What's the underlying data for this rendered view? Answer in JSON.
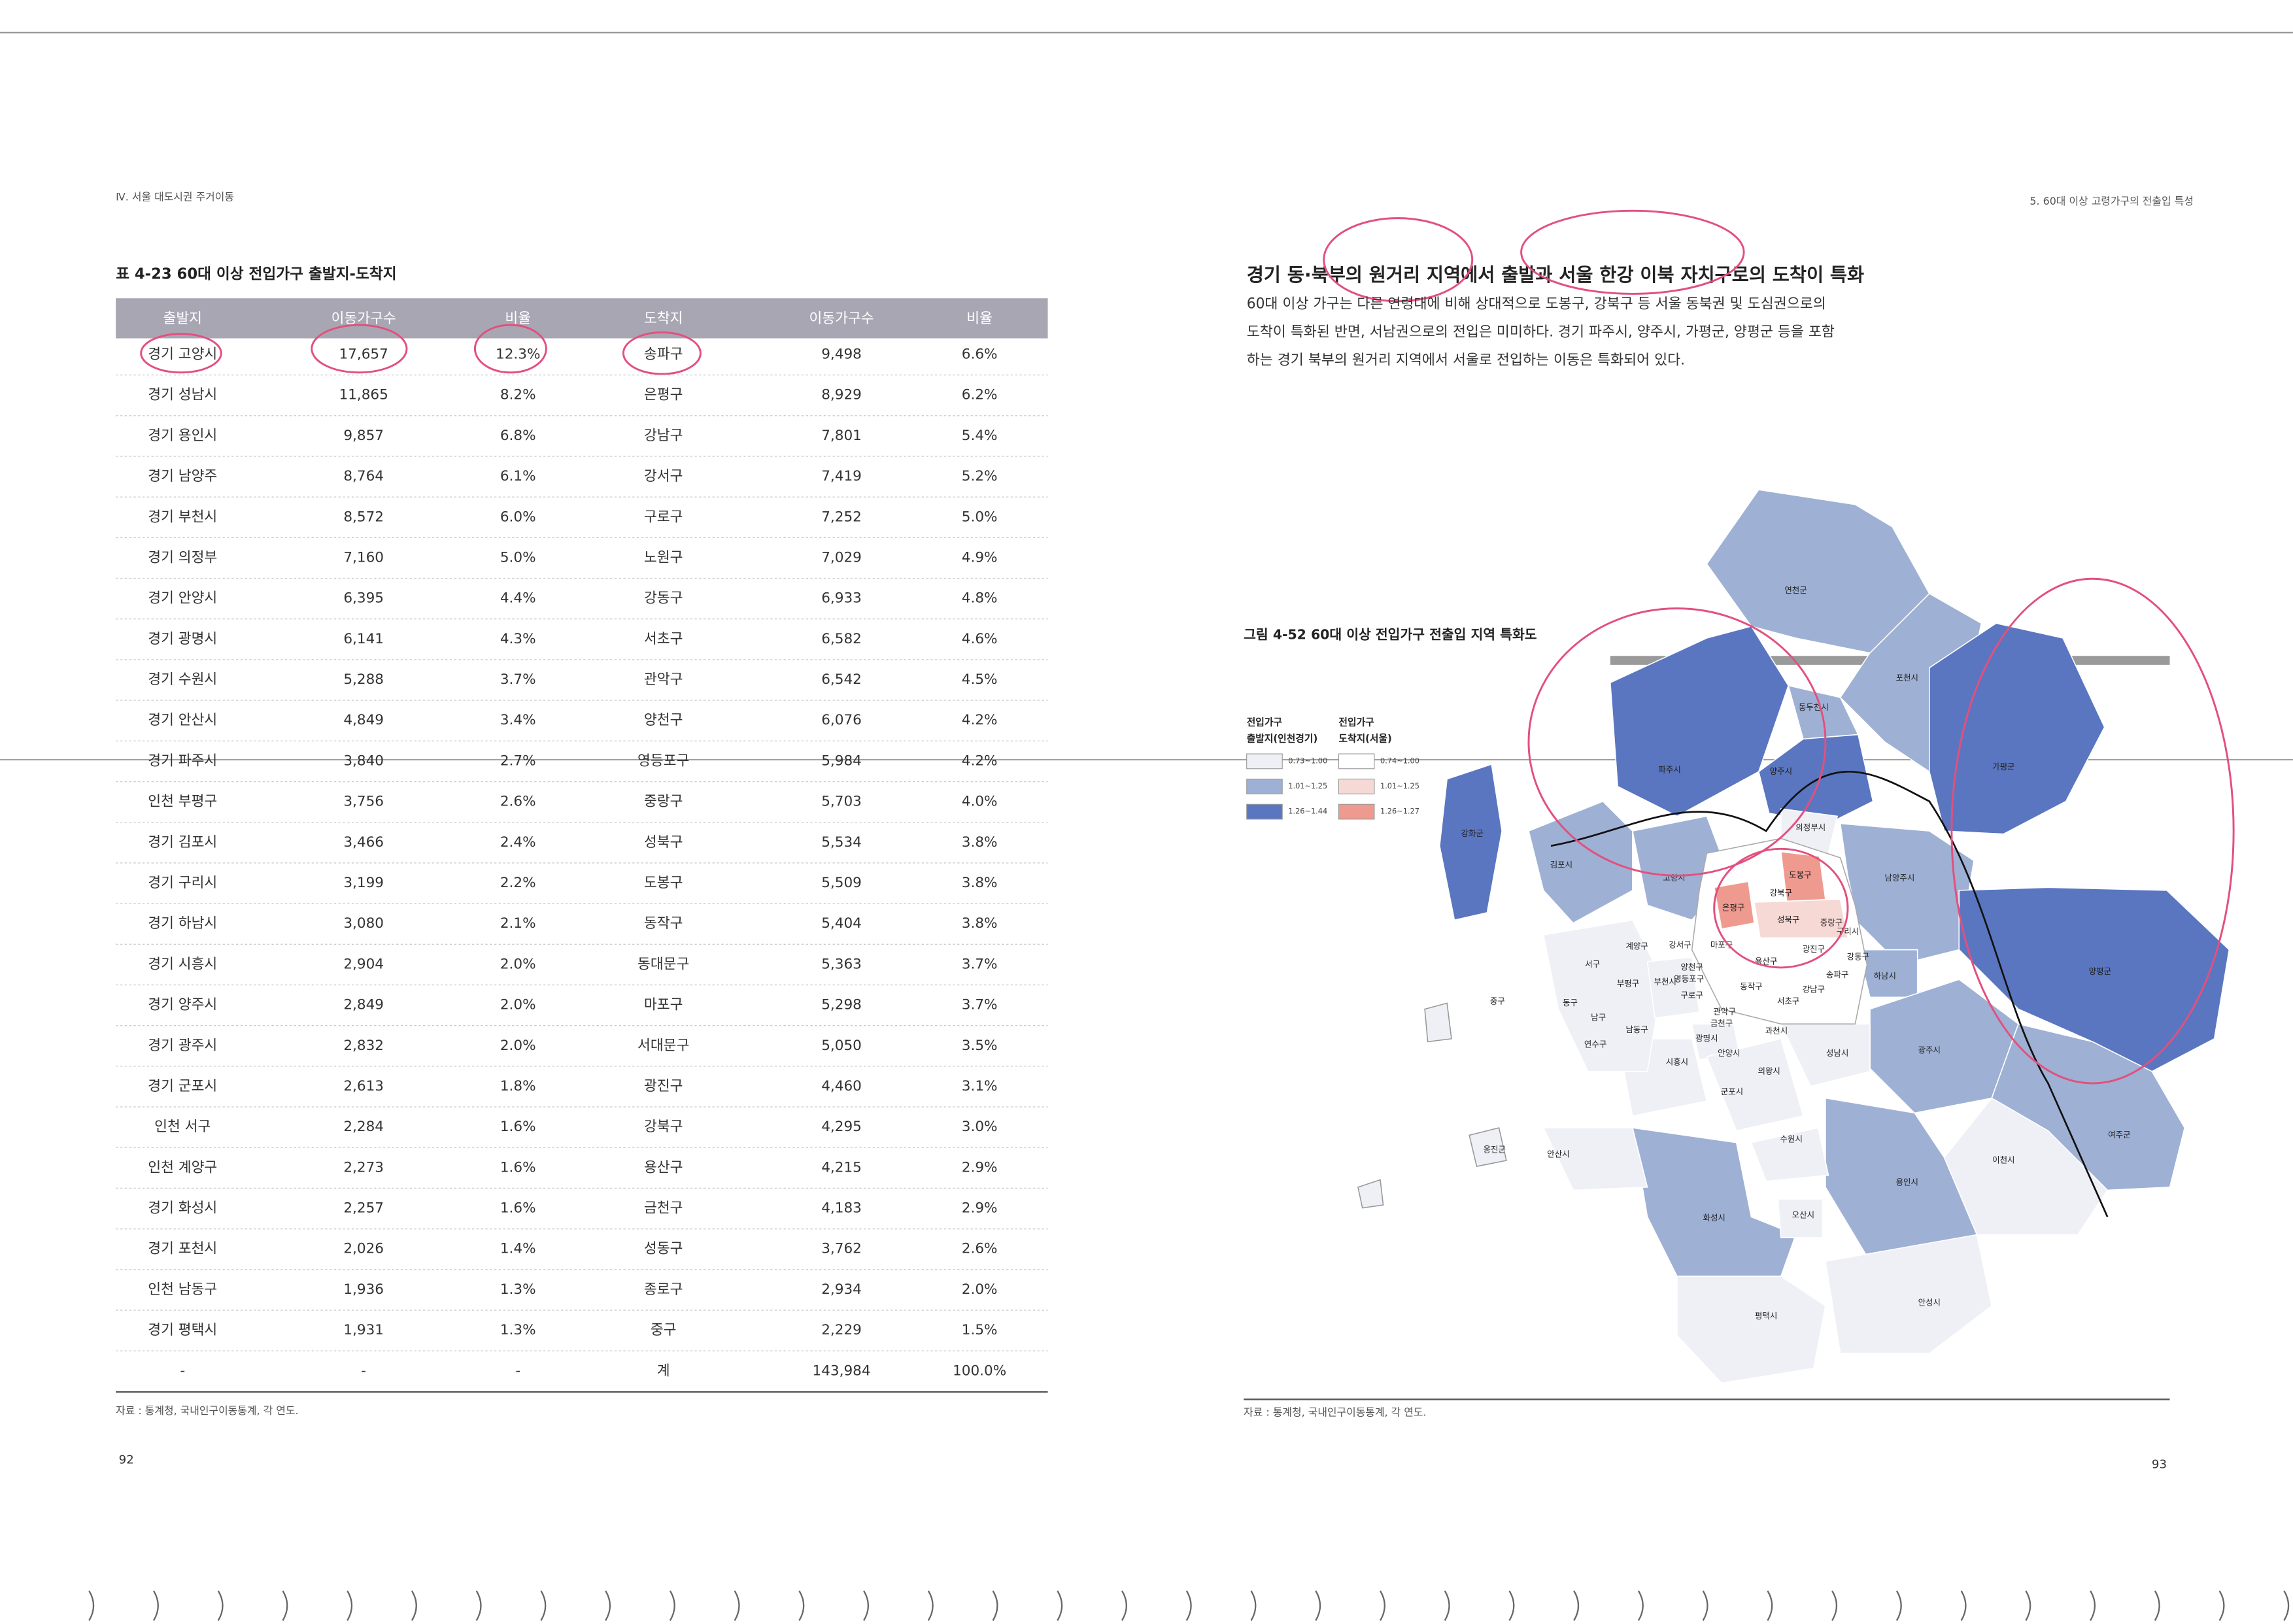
{
  "header": {
    "left": "Ⅳ. 서울 대도시권 주거이동",
    "right": "5. 60대 이상 고령가구의 전출입 특성"
  },
  "table": {
    "title": "표 4-23 60대 이상 전입가구 출발지-도착지",
    "columns": [
      "출발지",
      "이동가구수",
      "비율",
      "도착지",
      "이동가구수",
      "비율"
    ],
    "rows": [
      [
        "경기 고양시",
        "17,657",
        "12.3%",
        "송파구",
        "9,498",
        "6.6%"
      ],
      [
        "경기 성남시",
        "11,865",
        "8.2%",
        "은평구",
        "8,929",
        "6.2%"
      ],
      [
        "경기 용인시",
        "9,857",
        "6.8%",
        "강남구",
        "7,801",
        "5.4%"
      ],
      [
        "경기 남양주",
        "8,764",
        "6.1%",
        "강서구",
        "7,419",
        "5.2%"
      ],
      [
        "경기 부천시",
        "8,572",
        "6.0%",
        "구로구",
        "7,252",
        "5.0%"
      ],
      [
        "경기 의정부",
        "7,160",
        "5.0%",
        "노원구",
        "7,029",
        "4.9%"
      ],
      [
        "경기 안양시",
        "6,395",
        "4.4%",
        "강동구",
        "6,933",
        "4.8%"
      ],
      [
        "경기 광명시",
        "6,141",
        "4.3%",
        "서초구",
        "6,582",
        "4.6%"
      ],
      [
        "경기 수원시",
        "5,288",
        "3.7%",
        "관악구",
        "6,542",
        "4.5%"
      ],
      [
        "경기 안산시",
        "4,849",
        "3.4%",
        "양천구",
        "6,076",
        "4.2%"
      ],
      [
        "경기 파주시",
        "3,840",
        "2.7%",
        "영등포구",
        "5,984",
        "4.2%"
      ],
      [
        "인천 부평구",
        "3,756",
        "2.6%",
        "중랑구",
        "5,703",
        "4.0%"
      ],
      [
        "경기 김포시",
        "3,466",
        "2.4%",
        "성북구",
        "5,534",
        "3.8%"
      ],
      [
        "경기 구리시",
        "3,199",
        "2.2%",
        "도봉구",
        "5,509",
        "3.8%"
      ],
      [
        "경기 하남시",
        "3,080",
        "2.1%",
        "동작구",
        "5,404",
        "3.8%"
      ],
      [
        "경기 시흥시",
        "2,904",
        "2.0%",
        "동대문구",
        "5,363",
        "3.7%"
      ],
      [
        "경기 양주시",
        "2,849",
        "2.0%",
        "마포구",
        "5,298",
        "3.7%"
      ],
      [
        "경기 광주시",
        "2,832",
        "2.0%",
        "서대문구",
        "5,050",
        "3.5%"
      ],
      [
        "경기 군포시",
        "2,613",
        "1.8%",
        "광진구",
        "4,460",
        "3.1%"
      ],
      [
        "인천 서구",
        "2,284",
        "1.6%",
        "강북구",
        "4,295",
        "3.0%"
      ],
      [
        "인천 계양구",
        "2,273",
        "1.6%",
        "용산구",
        "4,215",
        "2.9%"
      ],
      [
        "경기 화성시",
        "2,257",
        "1.6%",
        "금천구",
        "4,183",
        "2.9%"
      ],
      [
        "경기 포천시",
        "2,026",
        "1.4%",
        "성동구",
        "3,762",
        "2.6%"
      ],
      [
        "인천 남동구",
        "1,936",
        "1.3%",
        "종로구",
        "2,934",
        "2.0%"
      ],
      [
        "경기 평택시",
        "1,931",
        "1.3%",
        "중구",
        "2,229",
        "1.5%"
      ],
      [
        "-",
        "-",
        "-",
        "계",
        "143,984",
        "100.0%"
      ]
    ],
    "source": "자료 : 통계청, 국내인구이동통계, 각 연도."
  },
  "section": {
    "heading": "경기 동·북부의 원거리 지역에서 출발과 서울 한강 이북 자치구로의 도착이 특화",
    "paragraph": [
      "60대 이상 가구는 다른 연령대에 비해 상대적으로 도봉구, 강북구 등 서울 동북권 및 도심권으로의",
      "도착이 특화된 반면, 서남권으로의 전입은 미미하다. 경기 파주시, 양주시, 가평군, 양평군 등을 포함",
      "하는 경기 북부의 원거리 지역에서 서울로 전입하는 이동은 특화되어 있다."
    ]
  },
  "figure": {
    "title": "그림 4-52 60대 이상 전입가구 전출입 지역 특화도",
    "legend": [
      {
        "title": [
          "전입가구",
          "출발지(인천경기)"
        ],
        "classes": [
          "0.73~1.00",
          "1.01~1.25",
          "1.26~1.44"
        ]
      },
      {
        "title": [
          "전입가구",
          "도착지(서울)"
        ],
        "classes": [
          "0.74~1.00",
          "1.01~1.25",
          "1.26~1.27"
        ]
      }
    ],
    "labels": [
      "연천군",
      "포천시",
      "동두천시",
      "파주시",
      "양주시",
      "가평군",
      "강화군",
      "김포시",
      "고양시",
      "의정부시",
      "남양주시",
      "양평군",
      "하남시",
      "광주시",
      "여주군",
      "이천시",
      "용인시",
      "안성시",
      "평택시",
      "화성시",
      "오산시",
      "수원시",
      "안산시",
      "시흥시",
      "부천시",
      "광명시",
      "안양시",
      "군포시",
      "의왕시",
      "과천시",
      "성남시",
      "구리시",
      "계양구",
      "강서구",
      "서구",
      "부평구",
      "중구",
      "동구",
      "남구",
      "남동구",
      "연수구",
      "옹진군",
      "은평구",
      "도봉구",
      "강북구",
      "성북구",
      "중랑구",
      "마포구",
      "용산구",
      "광진구",
      "강동구",
      "영등포구",
      "동작구",
      "관악구",
      "서초구",
      "강남구",
      "송파구",
      "구로구",
      "양천구",
      "금천구"
    ],
    "source": "자료 : 통계청, 국내인구이동통계, 각 연도."
  },
  "pages": {
    "left": "92",
    "right": "93"
  }
}
